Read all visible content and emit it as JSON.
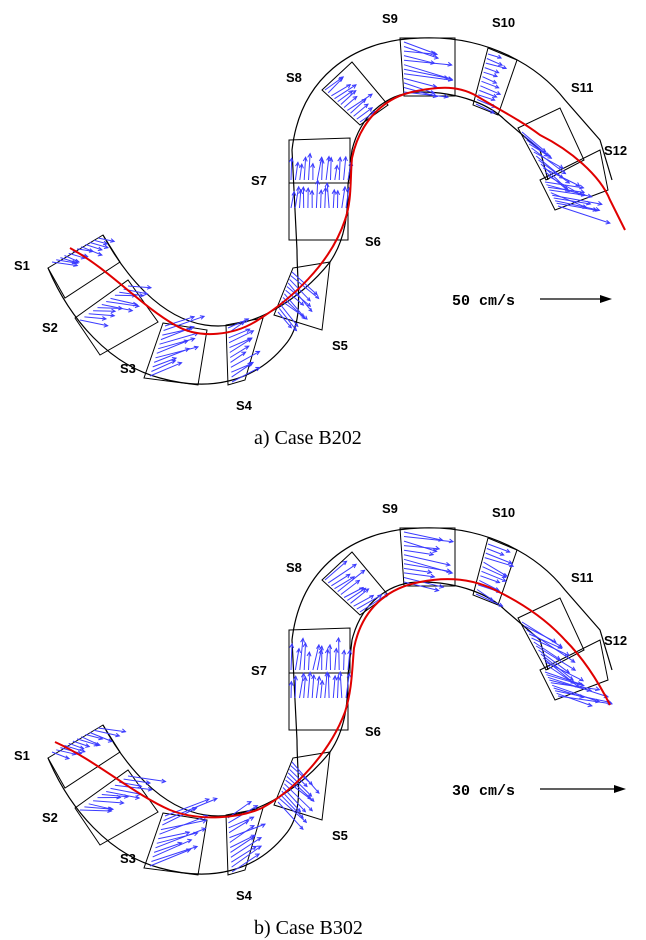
{
  "panels": [
    {
      "caption": "a)  Case B202",
      "scale_label": "50 cm/s",
      "sections": [
        "S1",
        "S2",
        "S3",
        "S4",
        "S5",
        "S6",
        "S7",
        "S8",
        "S9",
        "S10",
        "S11",
        "S12"
      ]
    },
    {
      "caption": "b)  Case B302",
      "scale_label": "30 cm/s",
      "sections": [
        "S1",
        "S2",
        "S3",
        "S4",
        "S5",
        "S6",
        "S7",
        "S8",
        "S9",
        "S10",
        "S11",
        "S12"
      ]
    }
  ],
  "colors": {
    "channel": "#000000",
    "velocity_vectors": "#3b3bff",
    "thalweg": "#e00000"
  }
}
